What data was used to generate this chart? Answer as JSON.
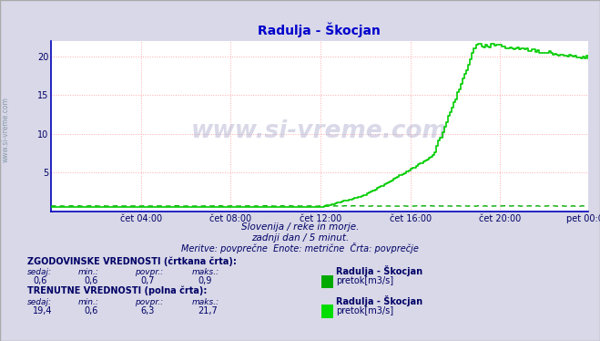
{
  "title": "Radulja - Škocjan",
  "title_color": "#0000cc",
  "bg_color": "#d8d8e8",
  "plot_bg_color": "#ffffff",
  "grid_color": "#ffaaaa",
  "watermark": "www.si-vreme.com",
  "xlabel_ticks": [
    "čet 04:00",
    "čet 08:00",
    "čet 12:00",
    "čet 16:00",
    "čet 20:00",
    "pet 00:00"
  ],
  "ylim": [
    0,
    22
  ],
  "xlim_max": 287,
  "historical_color": "#00aa00",
  "current_line_color": "#00cc00",
  "subtitle1": "Slovenija / reke in morje.",
  "subtitle2": "zadnji dan / 5 minut.",
  "subtitle3": "Meritve: povprečne  Enote: metrične  Črta: povprečje",
  "label1_bold": "ZGODOVINSKE VREDNOSTI (črtkana črta):",
  "label1_name": "Radulja - Škocjan",
  "label1_val_sedaj": "0,6",
  "label1_val_min": "0,6",
  "label1_val_povpr": "0,7",
  "label1_val_maks": "0,9",
  "label1_unit": "pretok[m3/s]",
  "label2_bold": "TRENUTNE VREDNOSTI (polna črta):",
  "label2_name": "Radulja - Škocjan",
  "label2_val_sedaj": "19,4",
  "label2_val_min": "0,6",
  "label2_val_povpr": "6,3",
  "label2_val_maks": "21,7",
  "label2_unit": "pretok[m3/s]",
  "text_color_dark": "#000066",
  "text_color_label": "#333366",
  "axis_color": "#0000bb",
  "sidebar_text": "www.si-vreme.com",
  "sidebar_color": "#8899aa",
  "icon1_color": "#00aa00",
  "icon2_color": "#00dd00"
}
